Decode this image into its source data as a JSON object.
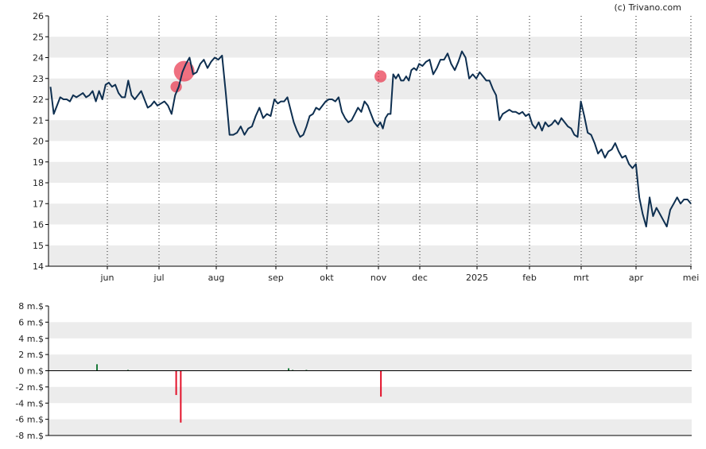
{
  "credit": "(c) Trivano.com",
  "chart_data": [
    {
      "type": "line",
      "ylim": [
        14,
        26
      ],
      "y_ticks": [
        "14",
        "15",
        "16",
        "17",
        "18",
        "19",
        "20",
        "21",
        "22",
        "23",
        "24",
        "25",
        "26"
      ],
      "x_ticks": [
        "jun",
        "jul",
        "aug",
        "sep",
        "okt",
        "nov",
        "dec",
        "2025",
        "feb",
        "mrt",
        "apr",
        "mei"
      ],
      "grid": "alternating horizontal bands, dotted vertical lines at month ticks",
      "series": [
        {
          "values": [
            22.6,
            21.3,
            21.7,
            22.1,
            22.0,
            22.0,
            21.9,
            22.2,
            22.1,
            22.2,
            22.3,
            22.1,
            22.2,
            22.4,
            21.9,
            22.4,
            22.0,
            22.7,
            22.8,
            22.6,
            22.7,
            22.3,
            22.1,
            22.1,
            22.9,
            22.2,
            22.0,
            22.2,
            22.4,
            22.0,
            21.6,
            21.7,
            21.9,
            21.7,
            21.8,
            21.9,
            21.7,
            21.3,
            22.2,
            22.6,
            23.3,
            23.7,
            24.0,
            23.2,
            23.3,
            23.7,
            23.9,
            23.5,
            23.8,
            24.0,
            23.9,
            24.1,
            22.3,
            20.3,
            20.3,
            20.4,
            20.7,
            20.3,
            20.6,
            20.7,
            21.2,
            21.6,
            21.1,
            21.3,
            21.2,
            22.0,
            21.8,
            21.9,
            21.9,
            22.1,
            21.5,
            20.9,
            20.5,
            20.2,
            20.3,
            20.7,
            21.2,
            21.3,
            21.6,
            21.5,
            21.7,
            21.9,
            22.0,
            22.0,
            21.9,
            22.1,
            21.4,
            21.1,
            20.9,
            21.0,
            21.3,
            21.6,
            21.4,
            21.9,
            21.7,
            21.3,
            20.9,
            20.7,
            20.9,
            20.6,
            21.1,
            21.3,
            21.3,
            23.2,
            23.0,
            23.2,
            22.9,
            22.9,
            23.1,
            22.9,
            23.4,
            23.5,
            23.4,
            23.7,
            23.6,
            23.8,
            23.9,
            23.2,
            23.5,
            23.9,
            23.9,
            24.2,
            23.7,
            23.4,
            23.8,
            24.3,
            24.0,
            23.0,
            23.2,
            23.0,
            23.3,
            23.1,
            22.9,
            22.9,
            22.5,
            22.2,
            21.0,
            21.3,
            21.4,
            21.5,
            21.4,
            21.4,
            21.3,
            21.4,
            21.2,
            21.3,
            20.8,
            20.6,
            20.9,
            20.5,
            20.9,
            20.7,
            20.8,
            21.0,
            20.8,
            21.1,
            20.9,
            20.7,
            20.6,
            20.3,
            20.2,
            21.9,
            21.2,
            20.4,
            20.3,
            19.9,
            19.4,
            19.6,
            19.2,
            19.5,
            19.6,
            19.9,
            19.5,
            19.2,
            19.3,
            18.9,
            18.7,
            18.9,
            17.3,
            16.5,
            15.9,
            17.3,
            16.4,
            16.8,
            16.5,
            16.2,
            15.9,
            16.7,
            17.0,
            17.3,
            17.0,
            17.2,
            17.2,
            17.0
          ]
        }
      ],
      "trade_markers": [
        {
          "month_position": 1.3,
          "value": 22.6,
          "relative_size": 0.35
        },
        {
          "month_position": 1.44,
          "value": 23.35,
          "relative_size": 1.0
        },
        {
          "month_position": 5.05,
          "value": 23.1,
          "relative_size": 0.4
        }
      ]
    },
    {
      "type": "bar",
      "ylim": [
        -8,
        8
      ],
      "y_ticks": [
        "8 m.$",
        "6 m.$",
        "4 m.$",
        "2 m.$",
        "0 m.$",
        "-2 m.$",
        "-4 m.$",
        "-6 m.$",
        "-8 m.$"
      ],
      "bars": [
        {
          "month_position": -0.2,
          "value": 0.8
        },
        {
          "month_position": 0.4,
          "value": 0.1
        },
        {
          "month_position": 1.3,
          "value": -3.0
        },
        {
          "month_position": 1.38,
          "value": -6.4
        },
        {
          "month_position": 3.25,
          "value": 0.3
        },
        {
          "month_position": 3.33,
          "value": 0.1
        },
        {
          "month_position": 3.6,
          "value": 0.1
        },
        {
          "month_position": 5.06,
          "value": -3.2
        }
      ],
      "colors": {
        "positive": "#1a7a3a",
        "negative": "#e3112a"
      }
    }
  ],
  "colors": {
    "line": "#0e2f50",
    "marker": "#e8334a",
    "band": "#ececec",
    "axis": "#000000"
  }
}
